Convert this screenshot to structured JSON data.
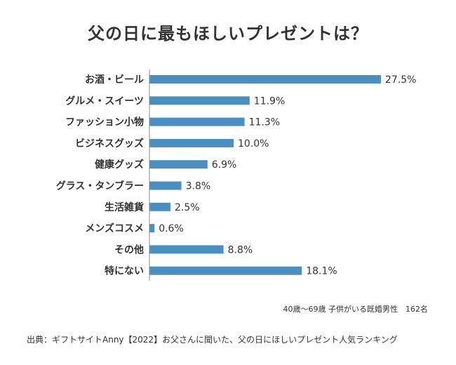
{
  "chart_data": {
    "type": "bar",
    "orientation": "horizontal",
    "title": "父の日に最もほしいプレゼントは？",
    "categories": [
      "お酒・ビール",
      "グルメ・スイーツ",
      "ファッション小物",
      "ビジネスグッズ",
      "健康グッズ",
      "グラス・タンブラー",
      "生活雑貨",
      "メンズコスメ",
      "その他",
      "特にない"
    ],
    "values": [
      27.5,
      11.9,
      11.3,
      10.0,
      6.9,
      3.8,
      2.5,
      0.6,
      8.8,
      18.1
    ],
    "value_labels": [
      "27.5%",
      "11.9%",
      "11.3%",
      "10.0%",
      "6.9%",
      "3.8%",
      "2.5%",
      "0.6%",
      "8.8%",
      "18.1%"
    ],
    "xlim": [
      0,
      30
    ],
    "grid": false,
    "bar_color": "#4a8fc0",
    "axis_color": "#888888"
  },
  "notes": {
    "sample": "40歳〜69歳 子供がいる既婚男性　162名",
    "source": "出典：ギフトサイトAnny【2022】お父さんに聞いた、父の日にほしいプレゼント人気ランキング"
  }
}
